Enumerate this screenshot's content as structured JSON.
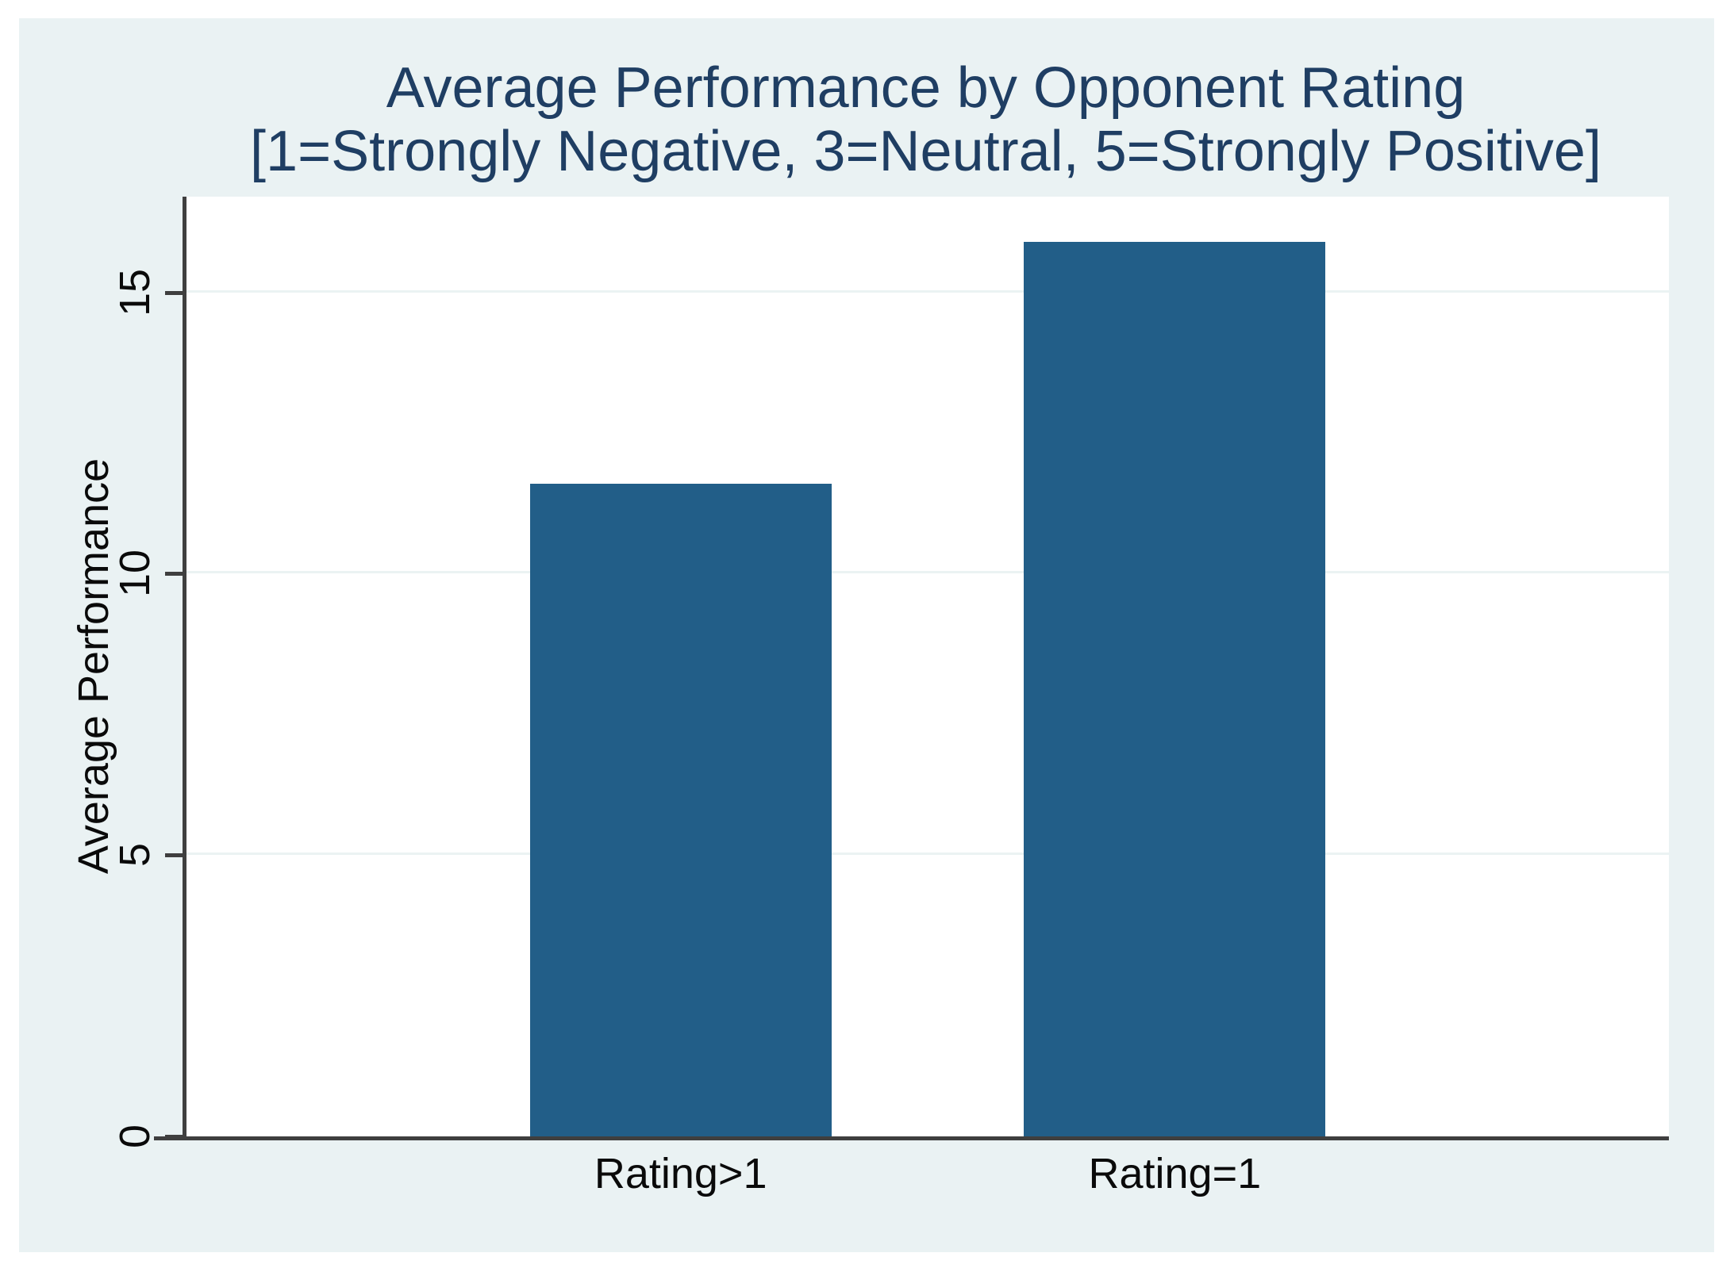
{
  "figure": {
    "outer_background": "#ffffff",
    "canvas_background": "#eaf2f3"
  },
  "chart_data": {
    "type": "bar",
    "title": "Average Performance by Opponent Rating",
    "subtitle": "[1=Strongly Negative, 3=Neutral, 5=Strongly Positive]",
    "categories": [
      "Rating>1",
      "Rating=1"
    ],
    "values": [
      11.6,
      15.9
    ],
    "xlabel": "",
    "ylabel": "Average Performance",
    "yticks": [
      0,
      5,
      10,
      15
    ],
    "ylim": [
      0,
      16.7
    ],
    "grid": true,
    "legend_position": "none",
    "bar_color": "#225e88",
    "title_color": "#1f3e63",
    "axis_color": "#3f3f3f",
    "gridline_color": "#ebf3f3",
    "tick_label_color": "#0a0a0a"
  }
}
